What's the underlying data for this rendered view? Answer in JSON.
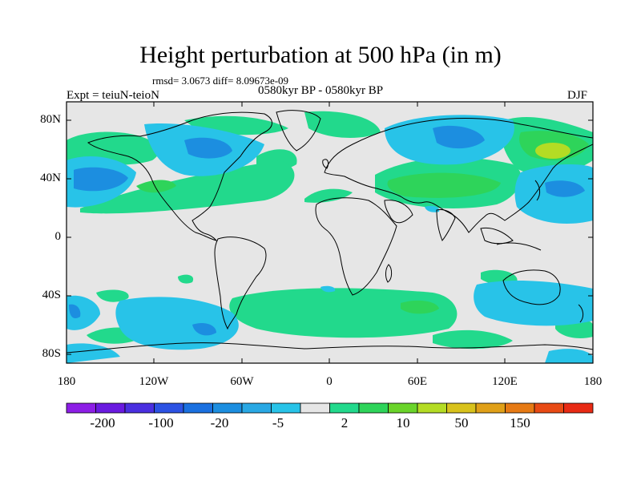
{
  "title": "Height perturbation at 500 hPa (in m)",
  "stats": "rmsd= 3.0673 diff= 8.09673e-09",
  "experiment": "Expt = teiuN-teioN",
  "period": "0580kyr BP - 0580kyr BP",
  "season": "DJF",
  "axes": {
    "y_ticks": [
      "80N",
      "40N",
      "0",
      "40S",
      "80S"
    ],
    "x_ticks": [
      "180",
      "120W",
      "60W",
      "0",
      "60E",
      "120E",
      "180"
    ]
  },
  "colorbar": {
    "labels": [
      "-200",
      "-100",
      "-20",
      "-5",
      "2",
      "10",
      "50",
      "150"
    ],
    "colors": [
      "#8d1ee6",
      "#6a1ae0",
      "#4a2fe0",
      "#2c52e3",
      "#1a70e0",
      "#1c8ee0",
      "#29a8e4",
      "#28c3e8",
      "#e6e6e6",
      "#22d98c",
      "#2ed45a",
      "#6ad42a",
      "#b4dc24",
      "#d8c21c",
      "#e0a018",
      "#e67a14",
      "#e84a14",
      "#e82a14"
    ]
  },
  "map": {
    "background_color": "#e6e6e6"
  }
}
